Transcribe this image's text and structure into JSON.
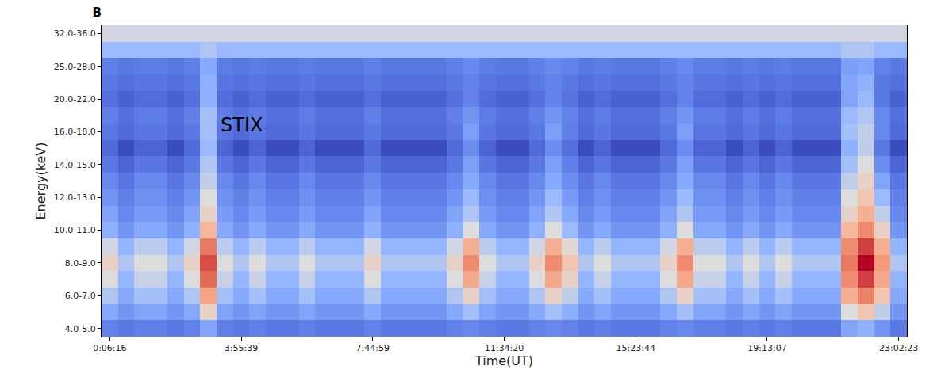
{
  "chart_data": {
    "type": "heatmap",
    "title": "B",
    "annotations": [
      "STIX"
    ],
    "x_label": "Time(UT)",
    "y_label": "Energy(keV)",
    "grid": false,
    "x": [
      "0:06:16",
      null,
      null,
      null,
      null,
      null,
      null,
      null,
      "3:55:39",
      null,
      null,
      null,
      null,
      null,
      null,
      null,
      "7:44:59",
      null,
      null,
      null,
      null,
      null,
      null,
      null,
      "11:34:20",
      null,
      null,
      null,
      null,
      null,
      null,
      null,
      "15:23:44",
      null,
      null,
      null,
      null,
      null,
      null,
      null,
      "19:13:07",
      null,
      null,
      null,
      null,
      null,
      null,
      null,
      "23:02:23"
    ],
    "y": [
      "4.0-5.0",
      null,
      "6.0-7.0",
      null,
      "8.0-9.0",
      null,
      "10.0-11.0",
      null,
      "12.0-13.0",
      null,
      "14.0-15.0",
      null,
      "16.0-18.0",
      null,
      "20.0-22.0",
      null,
      "25.0-28.0",
      null,
      "32.0-36.0"
    ],
    "cells": [
      [
        0.18,
        0.15,
        0.17,
        0.17,
        0.15,
        0.18,
        0.3,
        0.17,
        0.15,
        0.17,
        0.15,
        0.15,
        0.17,
        0.15,
        0.15,
        0.15,
        0.18,
        0.15,
        0.15,
        0.15,
        0.15,
        0.18,
        0.2,
        0.17,
        0.15,
        0.15,
        0.18,
        0.2,
        0.18,
        0.15,
        0.17,
        0.15,
        0.15,
        0.15,
        0.18,
        0.2,
        0.17,
        0.17,
        0.15,
        0.17,
        0.15,
        0.17,
        0.15,
        0.15,
        0.15,
        0.3,
        0.35,
        0.25,
        0.15
      ],
      [
        0.32,
        0.25,
        0.3,
        0.3,
        0.25,
        0.32,
        0.55,
        0.3,
        0.25,
        0.3,
        0.25,
        0.25,
        0.3,
        0.25,
        0.25,
        0.25,
        0.32,
        0.25,
        0.25,
        0.25,
        0.25,
        0.32,
        0.4,
        0.3,
        0.25,
        0.25,
        0.32,
        0.4,
        0.34,
        0.25,
        0.3,
        0.25,
        0.25,
        0.25,
        0.32,
        0.4,
        0.3,
        0.3,
        0.25,
        0.3,
        0.25,
        0.3,
        0.25,
        0.25,
        0.25,
        0.5,
        0.6,
        0.45,
        0.25
      ],
      [
        0.42,
        0.32,
        0.4,
        0.4,
        0.32,
        0.42,
        0.72,
        0.4,
        0.32,
        0.4,
        0.32,
        0.32,
        0.4,
        0.32,
        0.32,
        0.32,
        0.42,
        0.32,
        0.32,
        0.32,
        0.32,
        0.42,
        0.55,
        0.4,
        0.32,
        0.32,
        0.42,
        0.55,
        0.45,
        0.32,
        0.4,
        0.32,
        0.32,
        0.32,
        0.42,
        0.55,
        0.4,
        0.4,
        0.32,
        0.4,
        0.32,
        0.4,
        0.32,
        0.32,
        0.32,
        0.68,
        0.8,
        0.6,
        0.32
      ],
      [
        0.5,
        0.36,
        0.46,
        0.46,
        0.36,
        0.5,
        0.85,
        0.46,
        0.36,
        0.46,
        0.36,
        0.36,
        0.46,
        0.36,
        0.36,
        0.36,
        0.5,
        0.36,
        0.36,
        0.36,
        0.36,
        0.5,
        0.7,
        0.46,
        0.36,
        0.36,
        0.5,
        0.7,
        0.55,
        0.36,
        0.46,
        0.36,
        0.36,
        0.36,
        0.5,
        0.7,
        0.46,
        0.46,
        0.36,
        0.46,
        0.36,
        0.46,
        0.36,
        0.36,
        0.36,
        0.78,
        0.92,
        0.7,
        0.36
      ],
      [
        0.55,
        0.42,
        0.5,
        0.5,
        0.42,
        0.55,
        0.9,
        0.5,
        0.42,
        0.5,
        0.42,
        0.42,
        0.5,
        0.42,
        0.42,
        0.42,
        0.55,
        0.42,
        0.42,
        0.42,
        0.42,
        0.55,
        0.78,
        0.5,
        0.42,
        0.42,
        0.55,
        0.78,
        0.6,
        0.42,
        0.5,
        0.42,
        0.42,
        0.42,
        0.55,
        0.78,
        0.5,
        0.5,
        0.42,
        0.5,
        0.42,
        0.5,
        0.42,
        0.42,
        0.42,
        0.82,
        1,
        0.75,
        0.42
      ],
      [
        0.48,
        0.36,
        0.44,
        0.44,
        0.36,
        0.48,
        0.82,
        0.44,
        0.36,
        0.44,
        0.36,
        0.36,
        0.44,
        0.36,
        0.36,
        0.36,
        0.48,
        0.36,
        0.36,
        0.36,
        0.36,
        0.48,
        0.68,
        0.44,
        0.36,
        0.36,
        0.48,
        0.68,
        0.52,
        0.36,
        0.44,
        0.36,
        0.36,
        0.36,
        0.48,
        0.68,
        0.44,
        0.44,
        0.36,
        0.44,
        0.36,
        0.44,
        0.36,
        0.36,
        0.36,
        0.78,
        0.92,
        0.68,
        0.36
      ],
      [
        0.35,
        0.25,
        0.32,
        0.32,
        0.25,
        0.35,
        0.65,
        0.32,
        0.25,
        0.32,
        0.25,
        0.25,
        0.32,
        0.25,
        0.25,
        0.25,
        0.35,
        0.25,
        0.25,
        0.25,
        0.25,
        0.35,
        0.5,
        0.32,
        0.25,
        0.25,
        0.35,
        0.5,
        0.38,
        0.25,
        0.32,
        0.25,
        0.25,
        0.25,
        0.35,
        0.5,
        0.32,
        0.32,
        0.25,
        0.32,
        0.25,
        0.32,
        0.25,
        0.25,
        0.25,
        0.65,
        0.78,
        0.55,
        0.25
      ],
      [
        0.3,
        0.2,
        0.27,
        0.27,
        0.2,
        0.3,
        0.55,
        0.27,
        0.2,
        0.27,
        0.2,
        0.2,
        0.27,
        0.2,
        0.2,
        0.2,
        0.3,
        0.2,
        0.2,
        0.2,
        0.2,
        0.3,
        0.42,
        0.27,
        0.2,
        0.2,
        0.3,
        0.42,
        0.32,
        0.2,
        0.27,
        0.2,
        0.2,
        0.2,
        0.3,
        0.42,
        0.27,
        0.27,
        0.2,
        0.27,
        0.2,
        0.27,
        0.2,
        0.2,
        0.2,
        0.55,
        0.68,
        0.45,
        0.2
      ],
      [
        0.25,
        0.17,
        0.23,
        0.23,
        0.17,
        0.25,
        0.5,
        0.23,
        0.17,
        0.23,
        0.17,
        0.17,
        0.23,
        0.17,
        0.17,
        0.17,
        0.25,
        0.17,
        0.17,
        0.17,
        0.17,
        0.25,
        0.38,
        0.23,
        0.17,
        0.17,
        0.25,
        0.38,
        0.27,
        0.17,
        0.23,
        0.17,
        0.17,
        0.17,
        0.25,
        0.38,
        0.23,
        0.23,
        0.17,
        0.23,
        0.17,
        0.23,
        0.17,
        0.17,
        0.17,
        0.5,
        0.6,
        0.38,
        0.17
      ],
      [
        0.2,
        0.14,
        0.2,
        0.2,
        0.14,
        0.2,
        0.45,
        0.2,
        0.14,
        0.2,
        0.14,
        0.14,
        0.2,
        0.14,
        0.14,
        0.14,
        0.2,
        0.14,
        0.14,
        0.14,
        0.14,
        0.2,
        0.32,
        0.2,
        0.14,
        0.14,
        0.2,
        0.32,
        0.22,
        0.14,
        0.2,
        0.14,
        0.14,
        0.14,
        0.2,
        0.32,
        0.2,
        0.2,
        0.14,
        0.2,
        0.14,
        0.2,
        0.14,
        0.14,
        0.14,
        0.45,
        0.55,
        0.3,
        0.14
      ],
      [
        0.15,
        0.08,
        0.14,
        0.14,
        0.08,
        0.15,
        0.42,
        0.14,
        0.08,
        0.14,
        0.08,
        0.08,
        0.14,
        0.08,
        0.08,
        0.08,
        0.15,
        0.08,
        0.08,
        0.08,
        0.08,
        0.15,
        0.28,
        0.14,
        0.08,
        0.08,
        0.15,
        0.28,
        0.17,
        0.08,
        0.14,
        0.08,
        0.08,
        0.08,
        0.15,
        0.28,
        0.14,
        0.14,
        0.08,
        0.14,
        0.08,
        0.14,
        0.08,
        0.08,
        0.08,
        0.4,
        0.5,
        0.22,
        0.08
      ],
      [
        0.1,
        0,
        0.08,
        0.08,
        0,
        0.1,
        0.38,
        0.08,
        0,
        0.08,
        0,
        0,
        0.08,
        0,
        0,
        0,
        0.1,
        0,
        0,
        0,
        0,
        0.1,
        0.22,
        0.08,
        0,
        0,
        0.1,
        0.22,
        0.12,
        0,
        0.08,
        0,
        0,
        0,
        0.1,
        0.22,
        0.08,
        0.08,
        0,
        0.08,
        0,
        0.08,
        0,
        0,
        0,
        0.35,
        0.45,
        0.15,
        0
      ],
      [
        0.15,
        0.1,
        0.14,
        0.14,
        0.1,
        0.15,
        0.4,
        0.14,
        0.1,
        0.14,
        0.1,
        0.1,
        0.14,
        0.1,
        0.1,
        0.1,
        0.15,
        0.1,
        0.1,
        0.1,
        0.1,
        0.15,
        0.28,
        0.14,
        0.1,
        0.1,
        0.15,
        0.28,
        0.17,
        0.1,
        0.14,
        0.1,
        0.1,
        0.1,
        0.15,
        0.28,
        0.14,
        0.14,
        0.1,
        0.14,
        0.1,
        0.14,
        0.1,
        0.1,
        0.1,
        0.4,
        0.45,
        0.2,
        0.1
      ],
      [
        0.17,
        0.12,
        0.16,
        0.16,
        0.12,
        0.17,
        0.4,
        0.16,
        0.12,
        0.16,
        0.12,
        0.12,
        0.16,
        0.12,
        0.12,
        0.12,
        0.17,
        0.12,
        0.12,
        0.12,
        0.12,
        0.17,
        0.25,
        0.16,
        0.12,
        0.12,
        0.17,
        0.25,
        0.18,
        0.12,
        0.16,
        0.12,
        0.12,
        0.12,
        0.17,
        0.25,
        0.16,
        0.16,
        0.12,
        0.16,
        0.12,
        0.16,
        0.12,
        0.12,
        0.12,
        0.38,
        0.42,
        0.2,
        0.12
      ],
      [
        0.12,
        0.07,
        0.11,
        0.11,
        0.07,
        0.12,
        0.35,
        0.11,
        0.07,
        0.11,
        0.07,
        0.07,
        0.11,
        0.07,
        0.07,
        0.07,
        0.12,
        0.07,
        0.07,
        0.07,
        0.07,
        0.12,
        0.18,
        0.11,
        0.07,
        0.07,
        0.12,
        0.18,
        0.13,
        0.07,
        0.11,
        0.07,
        0.07,
        0.07,
        0.12,
        0.18,
        0.11,
        0.11,
        0.07,
        0.11,
        0.07,
        0.11,
        0.07,
        0.07,
        0.07,
        0.3,
        0.38,
        0.15,
        0.07
      ],
      [
        0.15,
        0.12,
        0.14,
        0.14,
        0.12,
        0.15,
        0.35,
        0.14,
        0.12,
        0.14,
        0.12,
        0.12,
        0.14,
        0.12,
        0.12,
        0.12,
        0.15,
        0.12,
        0.12,
        0.12,
        0.12,
        0.15,
        0.18,
        0.14,
        0.12,
        0.12,
        0.15,
        0.18,
        0.15,
        0.12,
        0.14,
        0.12,
        0.12,
        0.12,
        0.15,
        0.18,
        0.14,
        0.14,
        0.12,
        0.14,
        0.12,
        0.14,
        0.12,
        0.12,
        0.12,
        0.3,
        0.35,
        0.15,
        0.12
      ],
      [
        0.17,
        0.15,
        0.16,
        0.16,
        0.15,
        0.17,
        0.32,
        0.16,
        0.15,
        0.16,
        0.15,
        0.15,
        0.16,
        0.15,
        0.15,
        0.15,
        0.17,
        0.15,
        0.15,
        0.15,
        0.15,
        0.17,
        0.2,
        0.16,
        0.15,
        0.15,
        0.17,
        0.2,
        0.18,
        0.15,
        0.16,
        0.15,
        0.15,
        0.15,
        0.17,
        0.2,
        0.16,
        0.16,
        0.15,
        0.16,
        0.15,
        0.16,
        0.15,
        0.15,
        0.15,
        0.28,
        0.3,
        0.18,
        0.15
      ],
      [
        0.38,
        0.38,
        0.38,
        0.38,
        0.38,
        0.38,
        0.42,
        0.38,
        0.38,
        0.38,
        0.38,
        0.38,
        0.38,
        0.38,
        0.38,
        0.38,
        0.38,
        0.38,
        0.38,
        0.38,
        0.38,
        0.38,
        0.38,
        0.38,
        0.38,
        0.38,
        0.38,
        0.38,
        0.38,
        0.38,
        0.38,
        0.38,
        0.38,
        0.38,
        0.38,
        0.38,
        0.38,
        0.38,
        0.38,
        0.38,
        0.38,
        0.38,
        0.38,
        0.38,
        0.38,
        0.42,
        0.42,
        0.38,
        0.38
      ],
      [
        0.48,
        0.48,
        0.48,
        0.48,
        0.48,
        0.48,
        0.48,
        0.48,
        0.48,
        0.48,
        0.48,
        0.48,
        0.48,
        0.48,
        0.48,
        0.48,
        0.48,
        0.48,
        0.48,
        0.48,
        0.48,
        0.48,
        0.48,
        0.48,
        0.48,
        0.48,
        0.48,
        0.48,
        0.48,
        0.48,
        0.48,
        0.48,
        0.48,
        0.48,
        0.48,
        0.48,
        0.48,
        0.48,
        0.48,
        0.48,
        0.48,
        0.48,
        0.48,
        0.48,
        0.48,
        0.48,
        0.48,
        0.48,
        0.48
      ]
    ]
  }
}
